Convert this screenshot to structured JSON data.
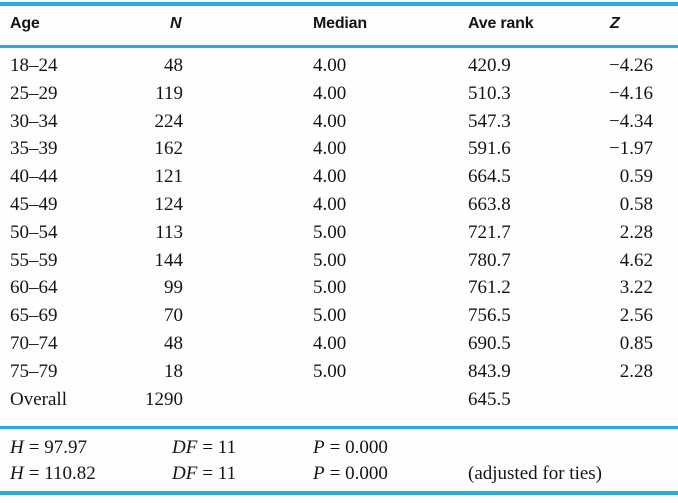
{
  "table": {
    "accent_color": "#2aabe2",
    "columns": {
      "age": "Age",
      "n": "N",
      "median": "Median",
      "ave_rank": "Ave rank",
      "z": "Z"
    },
    "rows": [
      {
        "age": "18–24",
        "n": "48",
        "median": "4.00",
        "ave_rank": "420.9",
        "z": "−4.26"
      },
      {
        "age": "25–29",
        "n": "119",
        "median": "4.00",
        "ave_rank": "510.3",
        "z": "−4.16"
      },
      {
        "age": "30–34",
        "n": "224",
        "median": "4.00",
        "ave_rank": "547.3",
        "z": "−4.34"
      },
      {
        "age": "35–39",
        "n": "162",
        "median": "4.00",
        "ave_rank": "591.6",
        "z": "−1.97"
      },
      {
        "age": "40–44",
        "n": "121",
        "median": "4.00",
        "ave_rank": "664.5",
        "z": "0.59"
      },
      {
        "age": "45–49",
        "n": "124",
        "median": "4.00",
        "ave_rank": "663.8",
        "z": "0.58"
      },
      {
        "age": "50–54",
        "n": "113",
        "median": "5.00",
        "ave_rank": "721.7",
        "z": "2.28"
      },
      {
        "age": "55–59",
        "n": "144",
        "median": "5.00",
        "ave_rank": "780.7",
        "z": "4.62"
      },
      {
        "age": "60–64",
        "n": "99",
        "median": "5.00",
        "ave_rank": "761.2",
        "z": "3.22"
      },
      {
        "age": "65–69",
        "n": "70",
        "median": "5.00",
        "ave_rank": "756.5",
        "z": "2.56"
      },
      {
        "age": "70–74",
        "n": "48",
        "median": "4.00",
        "ave_rank": "690.5",
        "z": "0.85"
      },
      {
        "age": "75–79",
        "n": "18",
        "median": "5.00",
        "ave_rank": "843.9",
        "z": "2.28"
      },
      {
        "age": "Overall",
        "n": "1290",
        "median": "",
        "ave_rank": "645.5",
        "z": ""
      }
    ],
    "footer": [
      {
        "h_var": "H",
        "h_val": "= 97.97",
        "df_var": "DF",
        "df_val": "= 11",
        "p_var": "P",
        "p_val": "= 0.000",
        "note": ""
      },
      {
        "h_var": "H",
        "h_val": "= 110.82",
        "df_var": "DF",
        "df_val": "= 11",
        "p_var": "P",
        "p_val": "= 0.000",
        "note": "(adjusted for ties)"
      }
    ]
  }
}
